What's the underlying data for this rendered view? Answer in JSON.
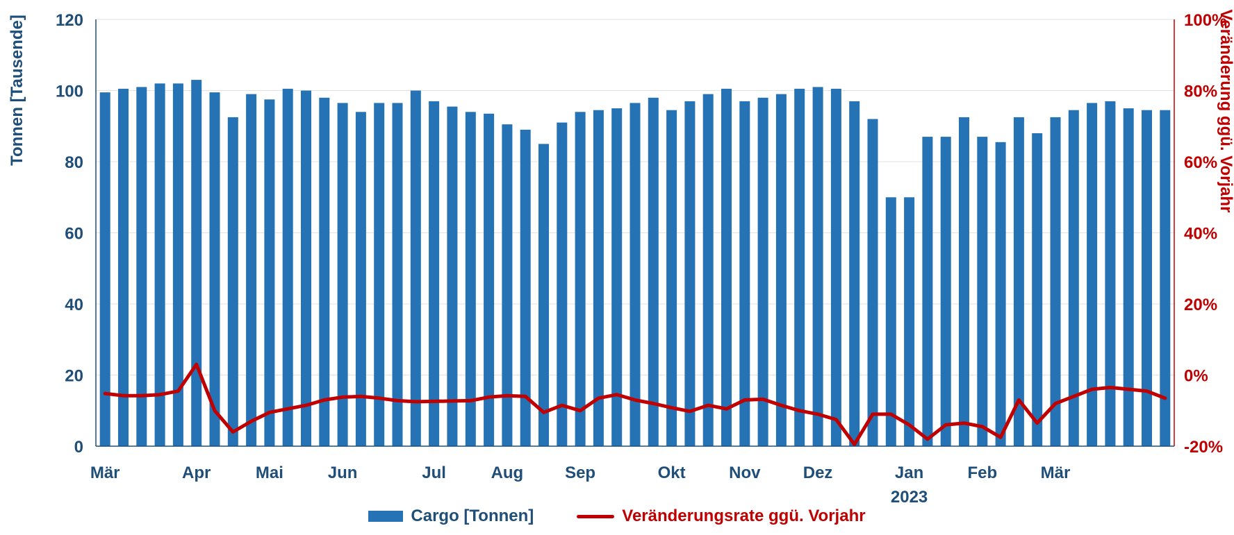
{
  "chart_data": {
    "type": "bar+line",
    "title": "",
    "x_ticks": [
      {
        "index": 0,
        "label": "Mär"
      },
      {
        "index": 5,
        "label": "Apr"
      },
      {
        "index": 9,
        "label": "Mai"
      },
      {
        "index": 13,
        "label": "Jun"
      },
      {
        "index": 18,
        "label": "Jul"
      },
      {
        "index": 22,
        "label": "Aug"
      },
      {
        "index": 26,
        "label": "Sep"
      },
      {
        "index": 31,
        "label": "Okt"
      },
      {
        "index": 35,
        "label": "Nov"
      },
      {
        "index": 39,
        "label": "Dez"
      },
      {
        "index": 44,
        "label": "Jan",
        "sublabel": "2023"
      },
      {
        "index": 48,
        "label": "Feb"
      },
      {
        "index": 52,
        "label": "Mär"
      }
    ],
    "left_axis": {
      "title": "Tonnen [Tausende]",
      "min": 0,
      "max": 120,
      "step": 20,
      "color": "#1F4E79"
    },
    "right_axis": {
      "title": "Veränderung ggü. Vorjahr",
      "min": -20,
      "max": 100,
      "step": 20,
      "suffix": "%",
      "color": "#C00000"
    },
    "grid_color": "#E2E2E2",
    "background": "#FFFFFF",
    "legend_position": "bottom",
    "series": [
      {
        "name": "Cargo [Tonnen]",
        "type": "bar",
        "axis": "left",
        "color": "#2573B5",
        "values": [
          99.5,
          100.5,
          101,
          102,
          102,
          103,
          99.5,
          92.5,
          99,
          97.5,
          100.5,
          100,
          98,
          96.5,
          94,
          96.5,
          96.5,
          100,
          97,
          95.5,
          94,
          93.5,
          90.5,
          89,
          85,
          91,
          94,
          94.5,
          95,
          96.5,
          98,
          94.5,
          97,
          99,
          100.5,
          97,
          98,
          99,
          100.5,
          101,
          100.5,
          97,
          92,
          70,
          70,
          87,
          87,
          92.5,
          87,
          85.5,
          92.5,
          88,
          92.5,
          94.5,
          96.5,
          97,
          95,
          94.5,
          94.5
        ]
      },
      {
        "name": "Veränderungsrate ggü. Vorjahr",
        "type": "line",
        "axis": "right",
        "color": "#C00000",
        "values": [
          -5.2,
          -5.8,
          -5.8,
          -5.5,
          -4.5,
          3.0,
          -10.0,
          -16.0,
          -13.0,
          -10.5,
          -9.5,
          -8.5,
          -7.0,
          -6.2,
          -6.0,
          -6.5,
          -7.2,
          -7.5,
          -7.4,
          -7.3,
          -7.2,
          -6.2,
          -5.8,
          -6.0,
          -10.5,
          -8.5,
          -10.0,
          -6.5,
          -5.5,
          -7.0,
          -8.0,
          -9.2,
          -10.2,
          -8.5,
          -9.5,
          -7.0,
          -6.8,
          -8.5,
          -10.0,
          -11.0,
          -12.5,
          -19.5,
          -11.0,
          -11.0,
          -14.0,
          -18.0,
          -14.0,
          -13.5,
          -14.5,
          -17.5,
          -7.0,
          -13.5,
          -8.0,
          -6.0,
          -4.0,
          -3.5,
          -4.0,
          -4.5,
          -6.5
        ]
      }
    ]
  }
}
